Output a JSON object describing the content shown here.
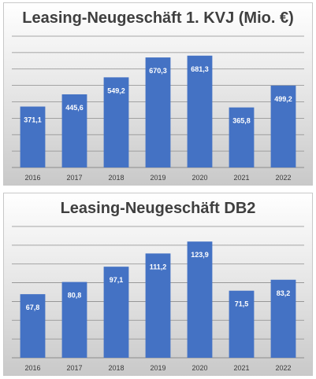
{
  "chart_data": [
    {
      "type": "bar",
      "title": "Leasing-Neugeschäft 1. KVJ (Mio. €)",
      "categories": [
        "2016",
        "2017",
        "2018",
        "2019",
        "2020",
        "2021",
        "2022"
      ],
      "values": [
        371.1,
        445.6,
        549.2,
        670.3,
        681.3,
        365.8,
        499.2
      ],
      "data_labels": [
        "371,1",
        "445,6",
        "549,2",
        "670,3",
        "681,3",
        "365,8",
        "499,2"
      ],
      "ylim": [
        0,
        800
      ],
      "gridlines": 8,
      "grid": true,
      "bar_color": "#4472c4",
      "xlabel": "",
      "ylabel": ""
    },
    {
      "type": "bar",
      "title": "Leasing-Neugeschäft DB2",
      "categories": [
        "2016",
        "2017",
        "2018",
        "2019",
        "2020",
        "2021",
        "2022"
      ],
      "values": [
        67.8,
        80.8,
        97.1,
        111.2,
        123.9,
        71.5,
        83.2
      ],
      "data_labels": [
        "67,8",
        "80,8",
        "97,1",
        "111,2",
        "123,9",
        "71,5",
        "83,2"
      ],
      "ylim": [
        0,
        140
      ],
      "gridlines": 7,
      "grid": true,
      "bar_color": "#4472c4",
      "xlabel": "",
      "ylabel": ""
    }
  ]
}
